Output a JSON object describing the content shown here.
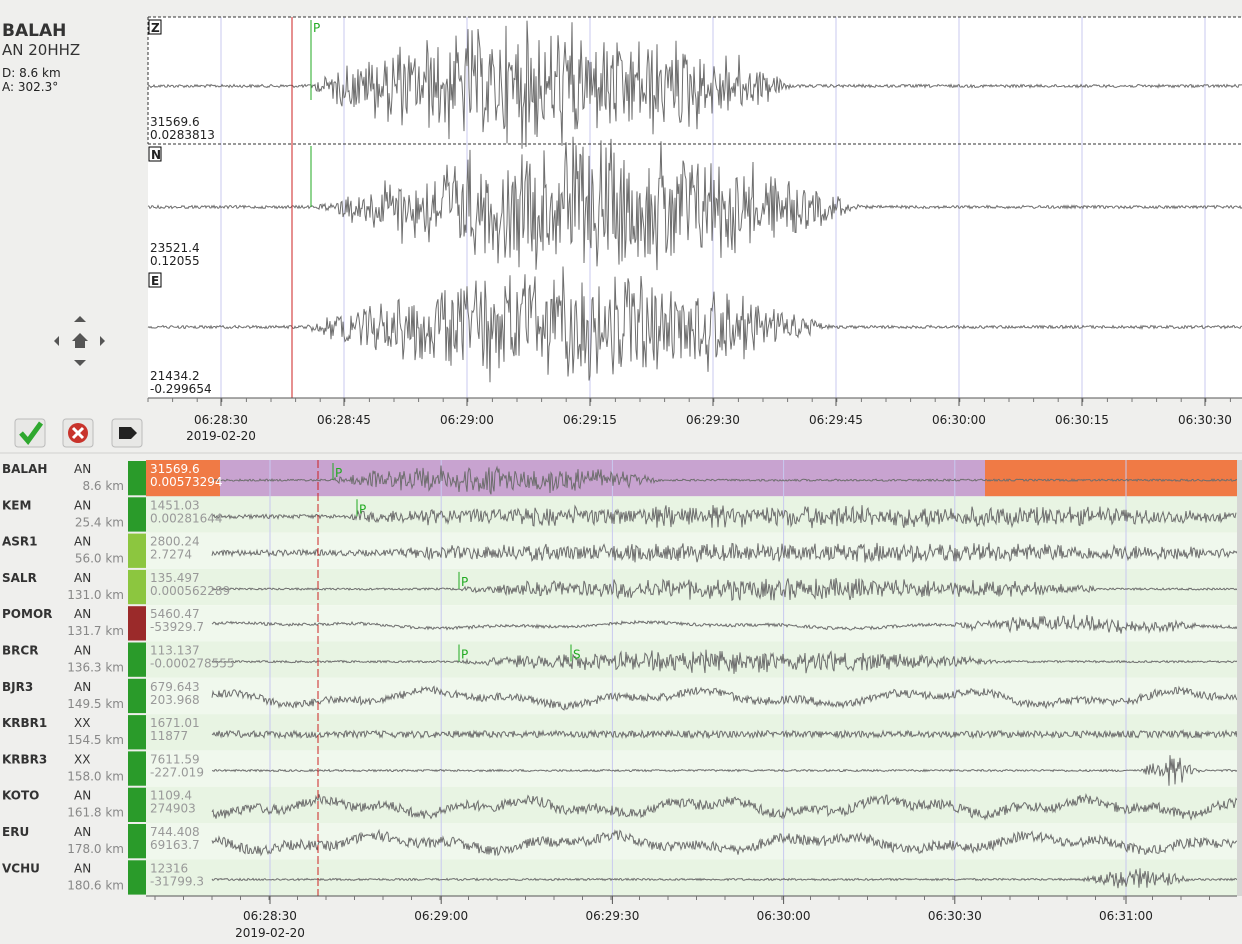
{
  "station": {
    "name": "BALAH",
    "channel": "AN 20HHZ",
    "distance": "D: 8.6 km",
    "azimuth": "A: 302.3°"
  },
  "traces": [
    {
      "component": "Z",
      "max": "31569.6",
      "offset": "0.0283813",
      "pick": "P"
    },
    {
      "component": "N",
      "max": "23521.4",
      "offset": "0.12055"
    },
    {
      "component": "E",
      "max": "21434.2",
      "offset": "-0.299654"
    }
  ],
  "top_axis": {
    "ticks": [
      "06:28:30",
      "06:28:45",
      "06:29:00",
      "06:29:15",
      "06:29:30",
      "06:29:45",
      "06:30:00",
      "06:30:15",
      "06:30:30"
    ],
    "date": "2019-02-20"
  },
  "stations": [
    {
      "name": "BALAH",
      "network": "AN",
      "distance": "8.6 km",
      "max": "31569.6",
      "offset": "0.00573294",
      "picks": [
        "P"
      ]
    },
    {
      "name": "KEM",
      "network": "AN",
      "distance": "25.4 km",
      "max": "1451.03",
      "offset": "0.00281644",
      "picks": [
        "P"
      ]
    },
    {
      "name": "ASR1",
      "network": "AN",
      "distance": "56.0 km",
      "max": "2800.24",
      "offset": "2.7274"
    },
    {
      "name": "SALR",
      "network": "AN",
      "distance": "131.0 km",
      "max": "135.497",
      "offset": "0.000562289",
      "picks": [
        "P"
      ]
    },
    {
      "name": "POMOR",
      "network": "AN",
      "distance": "131.7 km",
      "max": "5460.47",
      "offset": "-53929.7"
    },
    {
      "name": "BRCR",
      "network": "AN",
      "distance": "136.3 km",
      "max": "113.137",
      "offset": "-0.000278555",
      "picks": [
        "P",
        "S"
      ]
    },
    {
      "name": "BJR3",
      "network": "AN",
      "distance": "149.5 km",
      "max": "679.643",
      "offset": "203.968"
    },
    {
      "name": "KRBR1",
      "network": "XX",
      "distance": "154.5 km",
      "max": "1671.01",
      "offset": "11877"
    },
    {
      "name": "KRBR3",
      "network": "XX",
      "distance": "158.0 km",
      "max": "7611.59",
      "offset": "-227.019"
    },
    {
      "name": "KOTO",
      "network": "AN",
      "distance": "161.8 km",
      "max": "1109.4",
      "offset": "274903"
    },
    {
      "name": "ERU",
      "network": "AN",
      "distance": "178.0 km",
      "max": "744.408",
      "offset": "69163.7"
    },
    {
      "name": "VCHU",
      "network": "AN",
      "distance": "180.6 km",
      "max": "12316",
      "offset": "-31799.3"
    }
  ],
  "bottom_axis": {
    "ticks": [
      "06:28:30",
      "06:29:00",
      "06:29:30",
      "06:30:00",
      "06:30:30",
      "06:31:00"
    ],
    "date": "2019-02-20"
  }
}
